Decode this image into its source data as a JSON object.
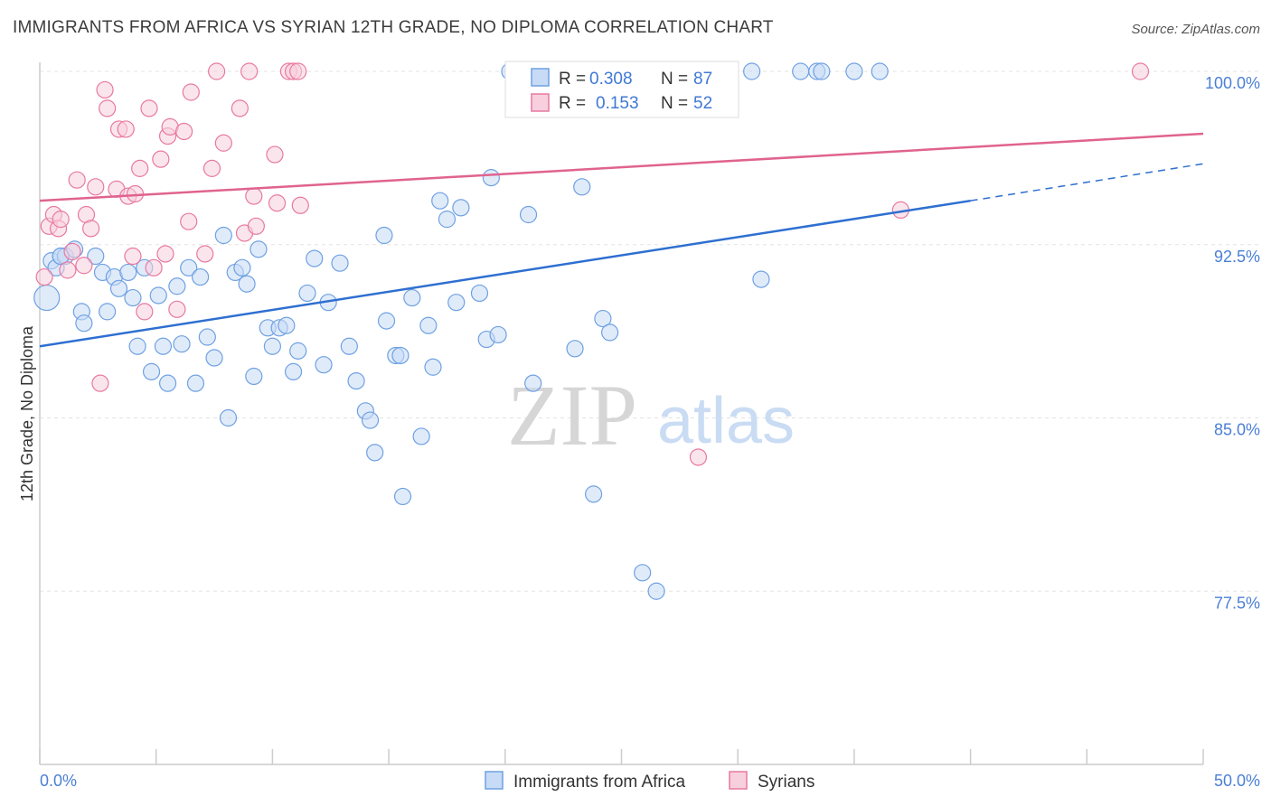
{
  "title": "IMMIGRANTS FROM AFRICA VS SYRIAN 12TH GRADE, NO DIPLOMA CORRELATION CHART",
  "source": "Source: ZipAtlas.com",
  "watermark": {
    "zip": "ZIP",
    "atlas": "atlas"
  },
  "colors": {
    "blue": "#6fa1e2",
    "blue_fill": "#c7dbf6",
    "pink": "#e879a0",
    "pink_fill": "#f8cfdd",
    "blue_line": "#2e6fd1",
    "pink_line": "#e0638f"
  },
  "legend": {
    "r_label": "R =",
    "n_label": "N =",
    "rows": [
      {
        "r": "0.308",
        "n": "87"
      },
      {
        "r": "0.153",
        "n": "52"
      }
    ]
  },
  "chart_data": {
    "type": "scatter",
    "title": "IMMIGRANTS FROM AFRICA VS SYRIAN 12TH GRADE, NO DIPLOMA CORRELATION CHART",
    "xlabel": "",
    "ylabel": "12th Grade, No Diploma",
    "xlim": [
      0,
      50
    ],
    "ylim": [
      70.0,
      101.0
    ],
    "x_tick_labels": [
      "0.0%",
      "50.0%"
    ],
    "y_ticks": [
      77.5,
      85.0,
      92.5,
      100.0
    ],
    "y_tick_labels": [
      "77.5%",
      "85.0%",
      "92.5%",
      "100.0%"
    ],
    "grid": true,
    "legend_position": "top-center",
    "series": [
      {
        "name": "Immigrants from Africa",
        "color": "#6fa1e2",
        "trend": {
          "x": [
            0,
            40,
            50
          ],
          "y": [
            88.1,
            94.4,
            96.0
          ],
          "solid_to": 40
        },
        "points": [
          [
            0.3,
            90.2
          ],
          [
            0.5,
            91.8
          ],
          [
            0.7,
            91.5
          ],
          [
            0.9,
            92.0
          ],
          [
            1.1,
            92.0
          ],
          [
            1.5,
            92.3
          ],
          [
            1.8,
            89.6
          ],
          [
            1.9,
            89.1
          ],
          [
            2.4,
            92.0
          ],
          [
            2.7,
            91.3
          ],
          [
            2.9,
            89.6
          ],
          [
            3.2,
            91.1
          ],
          [
            3.4,
            90.6
          ],
          [
            3.8,
            91.3
          ],
          [
            4.0,
            90.2
          ],
          [
            4.2,
            88.1
          ],
          [
            4.5,
            91.5
          ],
          [
            4.8,
            87.0
          ],
          [
            5.1,
            90.3
          ],
          [
            5.3,
            88.1
          ],
          [
            5.5,
            86.5
          ],
          [
            5.9,
            90.7
          ],
          [
            6.1,
            88.2
          ],
          [
            6.4,
            91.5
          ],
          [
            6.7,
            86.5
          ],
          [
            6.9,
            91.1
          ],
          [
            7.2,
            88.5
          ],
          [
            7.5,
            87.6
          ],
          [
            7.9,
            92.9
          ],
          [
            8.1,
            85.0
          ],
          [
            8.4,
            91.3
          ],
          [
            8.7,
            91.5
          ],
          [
            8.9,
            90.8
          ],
          [
            9.2,
            86.8
          ],
          [
            9.4,
            92.3
          ],
          [
            9.8,
            88.9
          ],
          [
            10.0,
            88.1
          ],
          [
            10.3,
            88.9
          ],
          [
            10.6,
            89.0
          ],
          [
            10.9,
            87.0
          ],
          [
            11.1,
            87.9
          ],
          [
            11.5,
            90.4
          ],
          [
            11.8,
            91.9
          ],
          [
            12.2,
            87.3
          ],
          [
            12.4,
            90.0
          ],
          [
            12.9,
            91.7
          ],
          [
            13.3,
            88.1
          ],
          [
            13.6,
            86.6
          ],
          [
            14.0,
            85.3
          ],
          [
            14.2,
            84.9
          ],
          [
            14.4,
            83.5
          ],
          [
            14.8,
            92.9
          ],
          [
            14.9,
            89.2
          ],
          [
            15.3,
            87.7
          ],
          [
            15.6,
            81.6
          ],
          [
            15.5,
            87.7
          ],
          [
            16.0,
            90.2
          ],
          [
            16.4,
            84.2
          ],
          [
            16.7,
            89.0
          ],
          [
            16.9,
            87.2
          ],
          [
            17.2,
            94.4
          ],
          [
            17.5,
            93.6
          ],
          [
            17.9,
            90.0
          ],
          [
            18.1,
            94.1
          ],
          [
            18.9,
            90.4
          ],
          [
            19.2,
            88.4
          ],
          [
            19.4,
            95.4
          ],
          [
            19.7,
            88.6
          ],
          [
            20.2,
            100.0
          ],
          [
            21.0,
            93.8
          ],
          [
            21.2,
            86.5
          ],
          [
            23.0,
            88.0
          ],
          [
            23.3,
            95.0
          ],
          [
            23.8,
            81.7
          ],
          [
            24.2,
            89.3
          ],
          [
            24.5,
            88.7
          ],
          [
            25.0,
            100.0
          ],
          [
            25.9,
            78.3
          ],
          [
            26.5,
            77.5
          ],
          [
            30.6,
            100.0
          ],
          [
            31.0,
            91.0
          ],
          [
            32.7,
            100.0
          ],
          [
            33.4,
            100.0
          ],
          [
            33.6,
            100.0
          ],
          [
            35.0,
            100.0
          ],
          [
            36.1,
            100.0
          ],
          [
            0.9,
            92.0
          ]
        ]
      },
      {
        "name": "Syrians",
        "color": "#e879a0",
        "trend": {
          "x": [
            0,
            50
          ],
          "y": [
            94.4,
            97.3
          ]
        },
        "points": [
          [
            0.2,
            91.1
          ],
          [
            0.4,
            93.3
          ],
          [
            0.6,
            93.8
          ],
          [
            0.8,
            93.2
          ],
          [
            0.9,
            93.6
          ],
          [
            1.2,
            91.4
          ],
          [
            1.4,
            92.2
          ],
          [
            1.6,
            95.3
          ],
          [
            1.9,
            91.6
          ],
          [
            2.0,
            93.8
          ],
          [
            2.2,
            93.2
          ],
          [
            2.4,
            95.0
          ],
          [
            2.6,
            86.5
          ],
          [
            2.8,
            99.2
          ],
          [
            2.9,
            98.4
          ],
          [
            3.3,
            94.9
          ],
          [
            3.4,
            97.5
          ],
          [
            3.7,
            97.5
          ],
          [
            3.8,
            94.6
          ],
          [
            4.0,
            92.0
          ],
          [
            4.1,
            94.7
          ],
          [
            4.3,
            95.8
          ],
          [
            4.5,
            89.6
          ],
          [
            4.7,
            98.4
          ],
          [
            4.9,
            91.5
          ],
          [
            5.2,
            96.2
          ],
          [
            5.4,
            92.1
          ],
          [
            5.5,
            97.2
          ],
          [
            5.6,
            97.6
          ],
          [
            5.9,
            89.7
          ],
          [
            6.2,
            97.4
          ],
          [
            6.4,
            93.5
          ],
          [
            6.5,
            99.1
          ],
          [
            7.1,
            92.1
          ],
          [
            7.4,
            95.8
          ],
          [
            7.6,
            100.0
          ],
          [
            7.9,
            96.9
          ],
          [
            8.6,
            98.4
          ],
          [
            8.8,
            93.0
          ],
          [
            9.0,
            100.0
          ],
          [
            9.2,
            94.6
          ],
          [
            9.3,
            93.3
          ],
          [
            10.1,
            96.4
          ],
          [
            10.2,
            94.3
          ],
          [
            10.7,
            100.0
          ],
          [
            10.9,
            100.0
          ],
          [
            11.1,
            100.0
          ],
          [
            11.2,
            94.2
          ],
          [
            28.2,
            100.0
          ],
          [
            28.3,
            83.3
          ],
          [
            37.0,
            94.0
          ],
          [
            47.3,
            100.0
          ]
        ]
      }
    ]
  },
  "bottom_legend": [
    {
      "label": "Immigrants from Africa"
    },
    {
      "label": "Syrians"
    }
  ]
}
